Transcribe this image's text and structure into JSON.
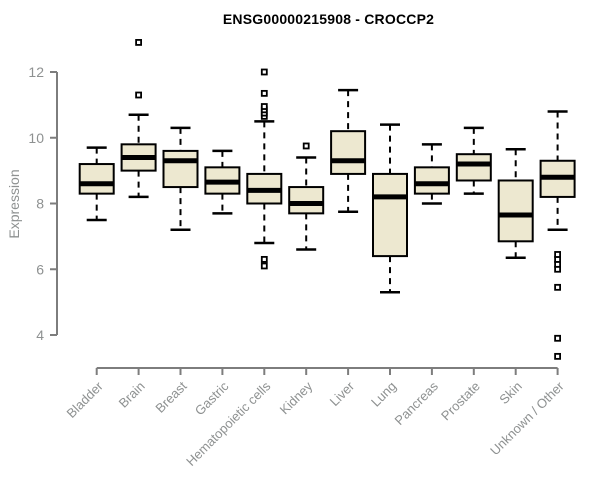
{
  "chart_data": {
    "type": "boxplot",
    "title": "ENSG00000215908 - CROCCP2",
    "xlabel": "",
    "ylabel": "Expression",
    "ylim": [
      4,
      12
    ],
    "yticks": [
      4,
      6,
      8,
      10,
      12
    ],
    "grid": false,
    "legend": "none",
    "categories": [
      "Bladder",
      "Brain",
      "Breast",
      "Gastric",
      "Hematopoietic cells",
      "Kidney",
      "Liver",
      "Lung",
      "Pancreas",
      "Prostate",
      "Skin",
      "Unknown / Other"
    ],
    "series": [
      {
        "name": "Bladder",
        "whisker_low": 7.5,
        "q1": 8.3,
        "median": 8.6,
        "q3": 9.2,
        "whisker_high": 9.7,
        "outliers": []
      },
      {
        "name": "Brain",
        "whisker_low": 8.2,
        "q1": 9.0,
        "median": 9.4,
        "q3": 9.8,
        "whisker_high": 10.7,
        "outliers": [
          11.3,
          12.9
        ]
      },
      {
        "name": "Breast",
        "whisker_low": 7.2,
        "q1": 8.5,
        "median": 9.3,
        "q3": 9.6,
        "whisker_high": 10.3,
        "outliers": []
      },
      {
        "name": "Gastric",
        "whisker_low": 7.7,
        "q1": 8.3,
        "median": 8.65,
        "q3": 9.1,
        "whisker_high": 9.6,
        "outliers": []
      },
      {
        "name": "Hematopoietic cells",
        "whisker_low": 6.8,
        "q1": 8.0,
        "median": 8.4,
        "q3": 8.9,
        "whisker_high": 10.5,
        "outliers": [
          6.1,
          6.3,
          10.65,
          10.75,
          10.85,
          10.95,
          11.35,
          12.0
        ]
      },
      {
        "name": "Kidney",
        "whisker_low": 6.6,
        "q1": 7.7,
        "median": 8.0,
        "q3": 8.5,
        "whisker_high": 9.4,
        "outliers": [
          9.75
        ]
      },
      {
        "name": "Liver",
        "whisker_low": 7.75,
        "q1": 8.9,
        "median": 9.3,
        "q3": 10.2,
        "whisker_high": 11.45,
        "outliers": []
      },
      {
        "name": "Lung",
        "whisker_low": 5.3,
        "q1": 6.4,
        "median": 8.2,
        "q3": 8.9,
        "whisker_high": 10.4,
        "outliers": []
      },
      {
        "name": "Pancreas",
        "whisker_low": 8.0,
        "q1": 8.3,
        "median": 8.6,
        "q3": 9.1,
        "whisker_high": 9.8,
        "outliers": []
      },
      {
        "name": "Prostate",
        "whisker_low": 8.3,
        "q1": 8.7,
        "median": 9.2,
        "q3": 9.5,
        "whisker_high": 10.3,
        "outliers": []
      },
      {
        "name": "Skin",
        "whisker_low": 6.35,
        "q1": 6.85,
        "median": 7.65,
        "q3": 8.7,
        "whisker_high": 9.65,
        "outliers": []
      },
      {
        "name": "Unknown / Other",
        "whisker_low": 7.2,
        "q1": 8.2,
        "median": 8.8,
        "q3": 9.3,
        "whisker_high": 10.8,
        "outliers": [
          3.35,
          3.9,
          5.45,
          6.0,
          6.15,
          6.3,
          6.45
        ]
      }
    ],
    "colors": {
      "box_fill": "#ede8d0",
      "box_border": "#000000",
      "median": "#000000",
      "whisker": "#000000",
      "axis": "#7d7d7d",
      "tick_label": "#8e9191",
      "title": "#000000",
      "background": "#ffffff"
    }
  }
}
